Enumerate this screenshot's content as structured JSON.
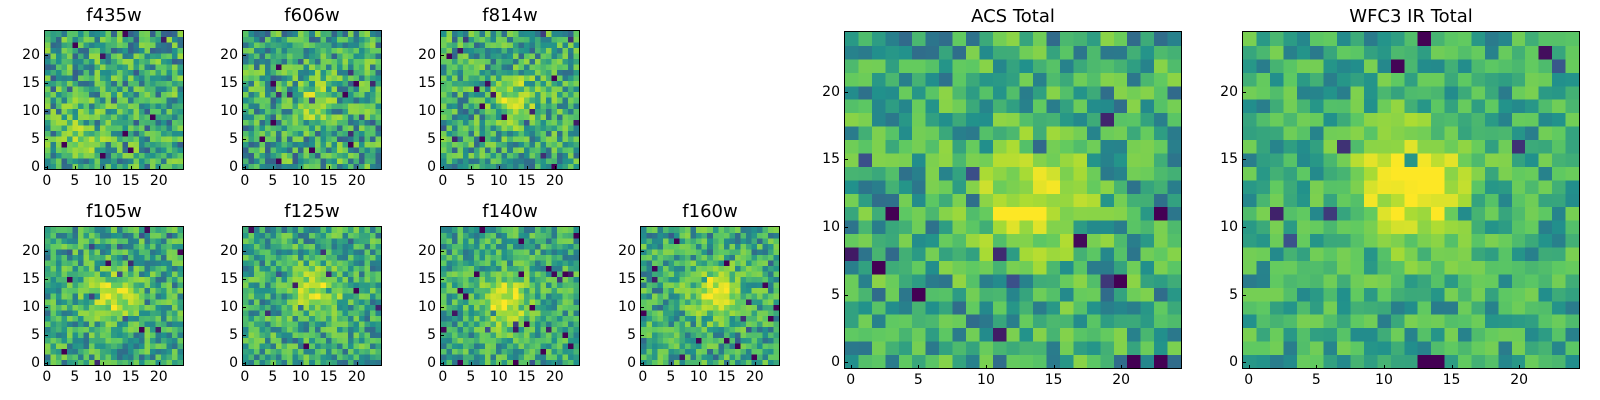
{
  "chart_data": [
    {
      "type": "heatmap",
      "title": "f435w",
      "grid_size": 25,
      "xticks": [
        "0",
        "5",
        "10",
        "15",
        "20"
      ],
      "yticks": [
        "0",
        "5",
        "10",
        "15",
        "20"
      ],
      "peak": [
        7,
        6
      ],
      "peak_strength": 0.15,
      "noise": 0.55,
      "seed": 11
    },
    {
      "type": "heatmap",
      "title": "f606w",
      "grid_size": 25,
      "xticks": [
        "0",
        "5",
        "10",
        "15",
        "20"
      ],
      "yticks": [
        "0",
        "5",
        "10",
        "15",
        "20"
      ],
      "peak": [
        12,
        12
      ],
      "peak_strength": 0.2,
      "noise": 0.55,
      "seed": 23
    },
    {
      "type": "heatmap",
      "title": "f814w",
      "grid_size": 25,
      "xticks": [
        "0",
        "5",
        "10",
        "15",
        "20"
      ],
      "yticks": [
        "0",
        "5",
        "10",
        "15",
        "20"
      ],
      "peak": [
        13,
        12
      ],
      "peak_strength": 0.3,
      "noise": 0.5,
      "seed": 37
    },
    {
      "type": "heatmap",
      "title": "f105w",
      "grid_size": 25,
      "xticks": [
        "0",
        "5",
        "10",
        "15",
        "20"
      ],
      "yticks": [
        "0",
        "5",
        "10",
        "15",
        "20"
      ],
      "peak": [
        12,
        12
      ],
      "peak_strength": 0.35,
      "noise": 0.45,
      "seed": 41
    },
    {
      "type": "heatmap",
      "title": "f125w",
      "grid_size": 25,
      "xticks": [
        "0",
        "5",
        "10",
        "15",
        "20"
      ],
      "yticks": [
        "0",
        "5",
        "10",
        "15",
        "20"
      ],
      "peak": [
        13,
        13
      ],
      "peak_strength": 0.35,
      "noise": 0.45,
      "seed": 53
    },
    {
      "type": "heatmap",
      "title": "f140w",
      "grid_size": 25,
      "xticks": [
        "0",
        "5",
        "10",
        "15",
        "20"
      ],
      "yticks": [
        "0",
        "5",
        "10",
        "15",
        "20"
      ],
      "peak": [
        11,
        11
      ],
      "peak_strength": 0.45,
      "noise": 0.4,
      "seed": 67
    },
    {
      "type": "heatmap",
      "title": "f160w",
      "grid_size": 25,
      "xticks": [
        "0",
        "5",
        "10",
        "15",
        "20"
      ],
      "yticks": [
        "0",
        "5",
        "10",
        "15",
        "20"
      ],
      "peak": [
        13,
        13
      ],
      "peak_strength": 0.4,
      "noise": 0.45,
      "seed": 71
    },
    {
      "type": "heatmap",
      "title": "ACS Total",
      "grid_size": 25,
      "xticks": [
        "0",
        "5",
        "10",
        "15",
        "20"
      ],
      "yticks": [
        "0",
        "5",
        "10",
        "15",
        "20"
      ],
      "peak": [
        13,
        12
      ],
      "peak_strength": 0.4,
      "noise": 0.45,
      "seed": 83
    },
    {
      "type": "heatmap",
      "title": "WFC3 IR Total",
      "grid_size": 25,
      "xticks": [
        "0",
        "5",
        "10",
        "15",
        "20"
      ],
      "yticks": [
        "0",
        "5",
        "10",
        "15",
        "20"
      ],
      "peak": [
        12,
        13
      ],
      "peak_strength": 0.55,
      "noise": 0.35,
      "seed": 97
    }
  ],
  "colormap": [
    "#440154",
    "#3b528b",
    "#21918c",
    "#5ec962",
    "#a8db34",
    "#fde725"
  ]
}
